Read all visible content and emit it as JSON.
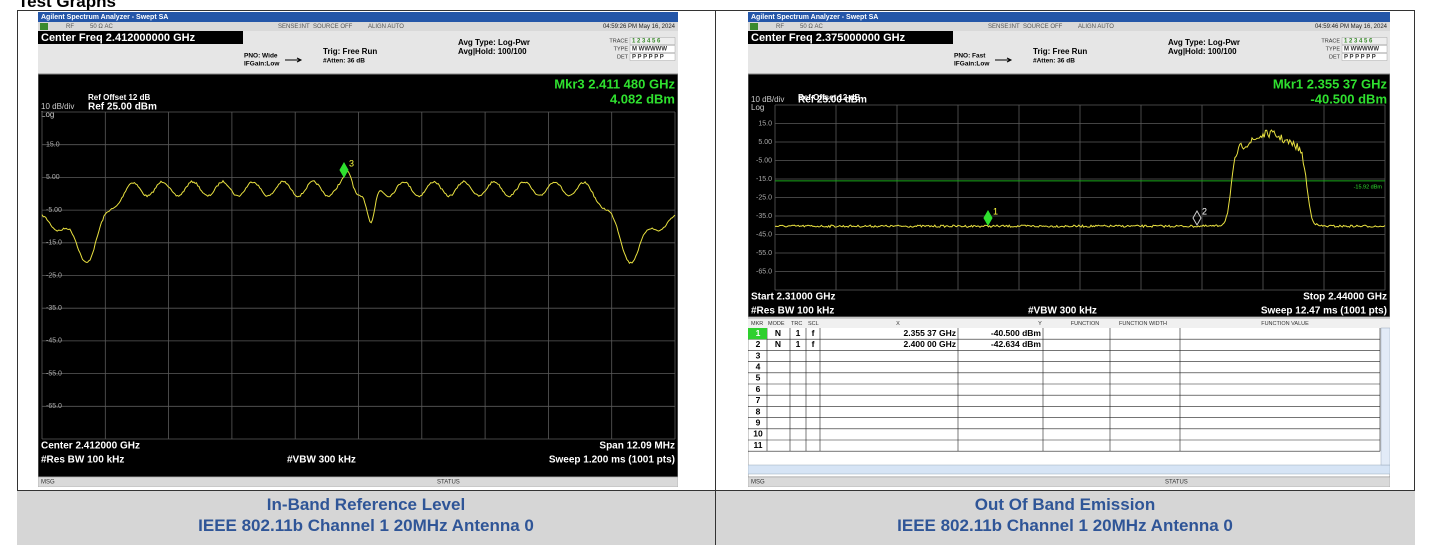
{
  "heading": "Test Graphs",
  "panels": [
    {
      "screen": {
        "title": "Agilent Spectrum Analyzer - Swept SA",
        "status": [
          "RF",
          "50 Ω  AC",
          "SENSE:INT",
          "SOURCE OFF",
          "ALIGN AUTO"
        ],
        "timestamp": "04:59:26 PM May 16, 2024",
        "center_freq": "Center Freq 2.412000000 GHz",
        "pno": "PNO: Wide",
        "ifgain": "IFGain:Low",
        "trig": "Trig: Free Run",
        "atten": "#Atten: 36 dB",
        "avg_type": "Avg Type: Log-Pwr",
        "avg_hold": "Avg|Hold: 100/100",
        "trace_labels": [
          "TRACE",
          "TYPE",
          "DET"
        ],
        "trace_values": [
          "1 2 3 4 5 6",
          "M WWWWW",
          "P P P P P P"
        ],
        "ref_offset": "Ref Offset 12 dB",
        "scale": "10 dB/div",
        "ref_level": "Ref 25.00 dBm",
        "log": "Log",
        "marker_freq": "Mkr3 2.411 480 GHz",
        "marker_level": "4.082 dBm",
        "y_labels": [
          "15.0",
          "5.00",
          "-5.00",
          "-15.0",
          "-25.0",
          "-35.0",
          "-45.0",
          "-55.0",
          "-65.0"
        ],
        "marker_ids": [
          "3"
        ],
        "bottom_left": [
          "Center 2.412000 GHz",
          "#Res BW 100 kHz"
        ],
        "vbw": "#VBW 300 kHz",
        "bottom_right": [
          "Span 12.09 MHz",
          "Sweep  1.200 ms (1001 pts)"
        ],
        "msg": "MSG",
        "status_bar": "STATUS"
      },
      "caption": [
        "In-Band Reference Level",
        "IEEE 802.11b  Channel 1  20MHz  Antenna 0"
      ]
    },
    {
      "screen": {
        "title": "Agilent Spectrum Analyzer - Swept SA",
        "status": [
          "RF",
          "50 Ω  AC",
          "SENSE:INT",
          "SOURCE OFF",
          "ALIGN AUTO"
        ],
        "timestamp": "04:59:46 PM May 16, 2024",
        "center_freq": "Center Freq 2.375000000 GHz",
        "pno": "PNO: Fast",
        "ifgain": "IFGain:Low",
        "trig": "Trig: Free Run",
        "atten": "#Atten: 36 dB",
        "avg_type": "Avg Type: Log-Pwr",
        "avg_hold": "Avg|Hold: 100/100",
        "trace_labels": [
          "TRACE",
          "TYPE",
          "DET"
        ],
        "trace_values": [
          "1 2 3 4 5 6",
          "M WWWWW",
          "P P P P P P"
        ],
        "ref_offset": "Ref Offset 12 dB",
        "scale": "10 dB/div",
        "ref_level": "Ref 25.00 dBm",
        "log": "Log",
        "marker_freq": "Mkr1 2.355 37 GHz",
        "marker_level": "-40.500 dBm",
        "y_labels": [
          "15.0",
          "5.00",
          "-5.00",
          "-15.0",
          "-25.0",
          "-35.0",
          "-45.0",
          "-55.0",
          "-65.0"
        ],
        "display_line": "-15.92 dBm",
        "marker_ids": [
          "1",
          "2"
        ],
        "bottom_left": [
          "Start 2.31000 GHz",
          "#Res BW 100 kHz"
        ],
        "vbw": "#VBW 300 kHz",
        "bottom_right": [
          "Stop 2.44000 GHz",
          "Sweep  12.47 ms (1001 pts)"
        ],
        "marker_table": {
          "header": [
            "MKR",
            "MODE",
            "TRC",
            "SCL",
            "X",
            "Y",
            "FUNCTION",
            "FUNCTION WIDTH",
            "FUNCTION VALUE"
          ],
          "rows": [
            [
              "1",
              "N",
              "1",
              "f",
              "2.355 37 GHz",
              "-40.500 dBm"
            ],
            [
              "2",
              "N",
              "1",
              "f",
              "2.400 00 GHz",
              "-42.634 dBm"
            ],
            [
              "3"
            ],
            [
              "4"
            ],
            [
              "5"
            ],
            [
              "6"
            ],
            [
              "7"
            ],
            [
              "8"
            ],
            [
              "9"
            ],
            [
              "10"
            ],
            [
              "11"
            ]
          ]
        },
        "msg": "MSG",
        "status_bar": "STATUS"
      },
      "caption": [
        "Out Of Band Emission",
        "IEEE 802.11b  Channel 1  20MHz  Antenna 0"
      ]
    }
  ]
}
